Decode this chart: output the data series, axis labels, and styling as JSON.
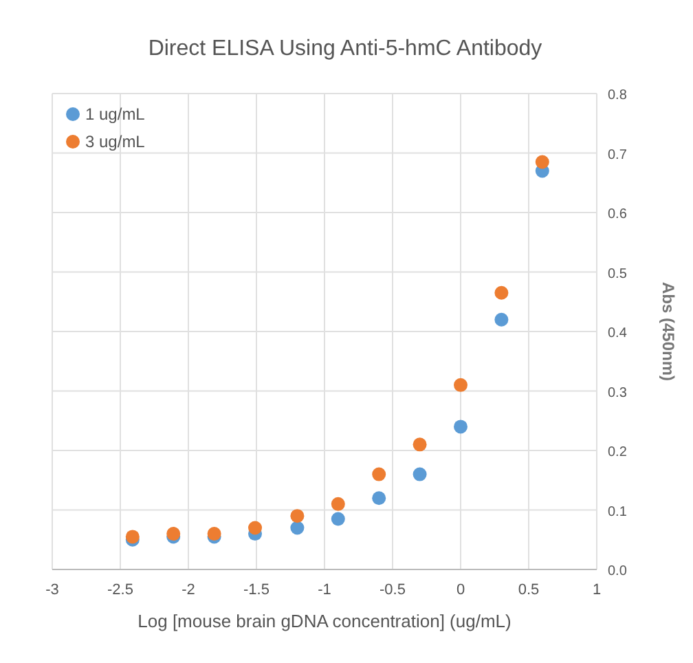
{
  "chart_data": {
    "type": "scatter",
    "title": "Direct ELISA Using Anti-5-hmC Antibody",
    "xlabel": "Log [mouse brain gDNA concentration] (ug/mL)",
    "ylabel": "Abs (450nm)",
    "x": [
      -2.41,
      -2.11,
      -1.81,
      -1.51,
      -1.2,
      -0.9,
      -0.6,
      -0.3,
      0,
      0.3,
      0.6
    ],
    "series": [
      {
        "name": "1 ug/mL",
        "color": "#5b9bd5",
        "values": [
          0.05,
          0.055,
          0.055,
          0.06,
          0.07,
          0.085,
          0.12,
          0.16,
          0.24,
          0.42,
          0.67
        ]
      },
      {
        "name": "3 ug/mL",
        "color": "#ed7d31",
        "values": [
          0.055,
          0.06,
          0.06,
          0.07,
          0.09,
          0.11,
          0.16,
          0.21,
          0.31,
          0.465,
          0.685
        ]
      }
    ],
    "xlim": [
      -3,
      1
    ],
    "xticks": [
      -3,
      -2.5,
      -2,
      -1.5,
      -1,
      -0.5,
      0,
      0.5,
      1
    ],
    "ylim": [
      0,
      0.8
    ],
    "yticks": [
      {
        "value": 0,
        "label": "0.0"
      },
      0.1,
      0.2,
      0.3,
      0.4,
      0.5,
      0.6,
      0.7,
      0.8
    ],
    "grid": true,
    "legend": "top left",
    "marker": "circle"
  }
}
